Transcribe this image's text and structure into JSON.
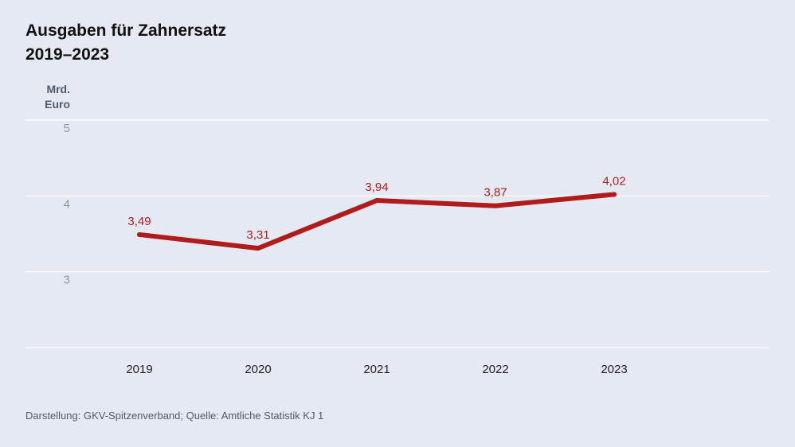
{
  "chart_data": {
    "type": "line",
    "title": "Ausgaben für Zahnersatz",
    "subtitle": "2019–2023",
    "ylabel": "Mrd. Euro",
    "ylabel_lines": [
      "Mrd.",
      "Euro"
    ],
    "x": [
      "2019",
      "2020",
      "2021",
      "2022",
      "2023"
    ],
    "series": [
      {
        "values": [
          3.49,
          3.31,
          3.94,
          3.87,
          4.02
        ]
      }
    ],
    "data_labels": [
      "3,49",
      "3,31",
      "3,94",
      "3,87",
      "4,02"
    ],
    "ylim": [
      2,
      5
    ],
    "yticks": [
      5,
      4,
      3
    ],
    "ytick_labels": [
      "5",
      "4",
      "3"
    ],
    "grid": true,
    "line_color": "#b01c1c",
    "grid_color": "#ffffff"
  },
  "footer": {
    "source": "Darstellung: GKV-Spitzenverband; Quelle: Amtliche Statistik KJ 1"
  }
}
